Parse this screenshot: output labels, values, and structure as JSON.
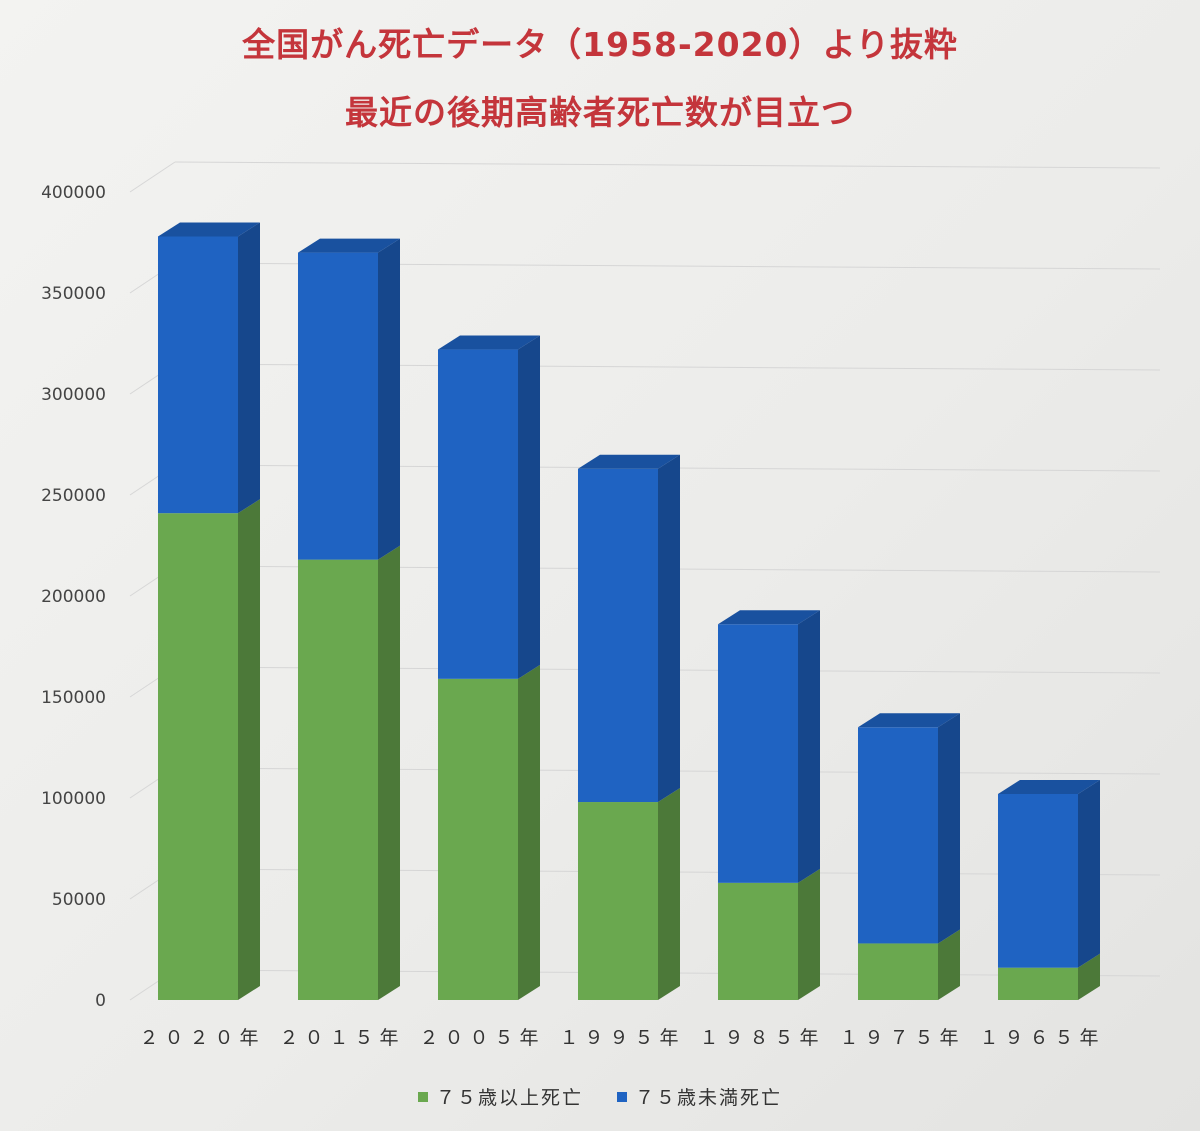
{
  "title_line1": "全国がん死亡データ（1958-2020）より抜粋",
  "title_line2": "最近の後期高齢者死亡数が目立つ",
  "colors": {
    "title": "#c4353b",
    "green": "#6aa84f",
    "blue": "#1f63c2"
  },
  "legend": [
    {
      "label": "７５歳以上死亡",
      "color": "#6aa84f"
    },
    {
      "label": "７５歳未満死亡",
      "color": "#1f63c2"
    }
  ],
  "chart_data": {
    "type": "bar",
    "stacked": true,
    "style": "3d-column",
    "categories": [
      "２０２０年",
      "２０１５年",
      "２００５年",
      "１９９５年",
      "１９８５年",
      "１９７５年",
      "１９６５年"
    ],
    "series": [
      {
        "name": "７５歳以上死亡",
        "values": [
          241000,
          218000,
          159000,
          98000,
          58000,
          28000,
          16000
        ]
      },
      {
        "name": "７５歳未満死亡",
        "values": [
          137000,
          152000,
          163000,
          165000,
          128000,
          107000,
          86000
        ]
      }
    ],
    "ylim": [
      0,
      400000
    ],
    "yticks": [
      "0",
      "50000",
      "100000",
      "150000",
      "200000",
      "250000",
      "300000",
      "350000",
      "400000"
    ],
    "grid": true,
    "legend_position": "bottom"
  }
}
